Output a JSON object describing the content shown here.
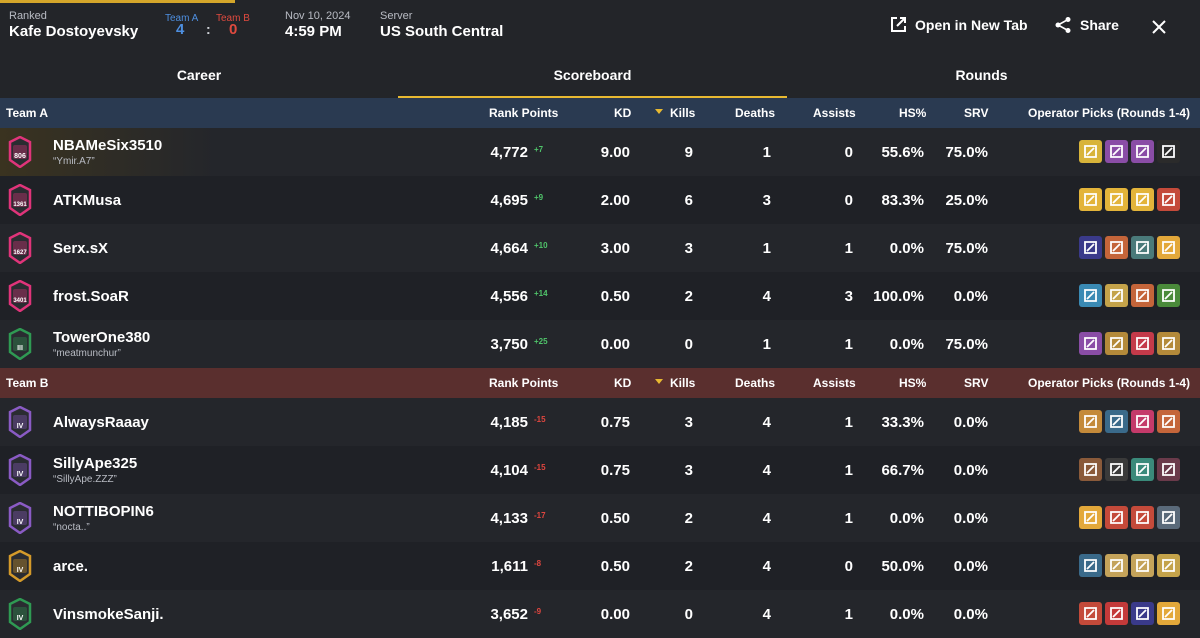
{
  "header": {
    "mode_label": "Ranked",
    "map_name": "Kafe Dostoyevsky",
    "team_a_label": "Team A",
    "team_b_label": "Team B",
    "team_a_score": "4",
    "score_separator": ":",
    "team_b_score": "0",
    "date": "Nov 10, 2024",
    "time": "4:59 PM",
    "server_label": "Server",
    "server_value": "US South Central",
    "open_new_tab_label": "Open in New Tab",
    "share_label": "Share"
  },
  "tabs": [
    {
      "label": "Career"
    },
    {
      "label": "Scoreboard",
      "active": true
    },
    {
      "label": "Rounds"
    }
  ],
  "columns": {
    "rank_points": "Rank Points",
    "kd": "KD",
    "kills": "Kills",
    "deaths": "Deaths",
    "assists": "Assists",
    "hs": "HS%",
    "srv": "SRV",
    "operators": "Operator Picks (Rounds 1-4)"
  },
  "teams": [
    {
      "name": "Team A",
      "players": [
        {
          "name": "NBAMeSix3510",
          "sub": "“Ymir.A7”",
          "rank_badge": "806",
          "rank_color": "#e0347a",
          "rank_points": "4,772",
          "delta": "+7",
          "kd": "9.00",
          "kills": "9",
          "deaths": "1",
          "assists": "0",
          "hs": "55.6%",
          "srv": "75.0%",
          "ops": [
            "#d8b43a",
            "#8a4da6",
            "#8a4da6",
            "#2b2b2b"
          ]
        },
        {
          "name": "ATKMusa",
          "sub": "",
          "rank_badge": "1361",
          "rank_color": "#e0347a",
          "rank_points": "4,695",
          "delta": "+9",
          "kd": "2.00",
          "kills": "6",
          "deaths": "3",
          "assists": "0",
          "hs": "83.3%",
          "srv": "25.0%",
          "ops": [
            "#e3b43a",
            "#e3b43a",
            "#e3b43a",
            "#c44a3a"
          ]
        },
        {
          "name": "Serx.sX",
          "sub": "",
          "rank_badge": "1627",
          "rank_color": "#e0347a",
          "rank_points": "4,664",
          "delta": "+10",
          "kd": "3.00",
          "kills": "3",
          "deaths": "1",
          "assists": "1",
          "hs": "0.0%",
          "srv": "75.0%",
          "ops": [
            "#3a3a8a",
            "#c4653a",
            "#4a7a7a",
            "#e3a83a"
          ]
        },
        {
          "name": "frost.SoaR",
          "sub": "",
          "rank_badge": "3401",
          "rank_color": "#e0347a",
          "rank_points": "4,556",
          "delta": "+14",
          "kd": "0.50",
          "kills": "2",
          "deaths": "4",
          "assists": "3",
          "hs": "100.0%",
          "srv": "0.0%",
          "ops": [
            "#3a8ab4",
            "#c4a34a",
            "#c4653a",
            "#4a8a3a"
          ]
        },
        {
          "name": "TowerOne380",
          "sub": "“meatmunchur”",
          "rank_badge": "III",
          "rank_color": "#2f9a53",
          "rank_points": "3,750",
          "delta": "+25",
          "kd": "0.00",
          "kills": "0",
          "deaths": "1",
          "assists": "1",
          "hs": "0.0%",
          "srv": "75.0%",
          "ops": [
            "#8a4da6",
            "#b48a3a",
            "#c43a4a",
            "#b48a3a"
          ]
        }
      ]
    },
    {
      "name": "Team B",
      "players": [
        {
          "name": "AlwaysRaaay",
          "sub": "",
          "rank_badge": "IV",
          "rank_color": "#8a5bc4",
          "rank_points": "4,185",
          "delta": "-15",
          "kd": "0.75",
          "kills": "3",
          "deaths": "4",
          "assists": "1",
          "hs": "33.3%",
          "srv": "0.0%",
          "ops": [
            "#c48a3a",
            "#3a6a8a",
            "#c43a6a",
            "#c4653a"
          ]
        },
        {
          "name": "SillyApe325",
          "sub": "“SillyApe.ZZZ”",
          "rank_badge": "IV",
          "rank_color": "#8a5bc4",
          "rank_points": "4,104",
          "delta": "-15",
          "kd": "0.75",
          "kills": "3",
          "deaths": "4",
          "assists": "1",
          "hs": "66.7%",
          "srv": "0.0%",
          "ops": [
            "#8a5a3a",
            "#3a3a3a",
            "#3a8a7a",
            "#6a3a4a"
          ]
        },
        {
          "name": "NOTTIBOPIN6",
          "sub": "“nocta..”",
          "rank_badge": "IV",
          "rank_color": "#8a5bc4",
          "rank_points": "4,133",
          "delta": "-17",
          "kd": "0.50",
          "kills": "2",
          "deaths": "4",
          "assists": "1",
          "hs": "0.0%",
          "srv": "0.0%",
          "ops": [
            "#e3a83a",
            "#c44a3a",
            "#c44a3a",
            "#5a6a7a"
          ]
        },
        {
          "name": "arce.",
          "sub": "",
          "rank_badge": "IV",
          "rank_color": "#d49a2a",
          "rank_points": "1,611",
          "delta": "-8",
          "kd": "0.50",
          "kills": "2",
          "deaths": "4",
          "assists": "0",
          "hs": "50.0%",
          "srv": "0.0%",
          "ops": [
            "#3a6a8a",
            "#c4a35a",
            "#c4a35a",
            "#c4a34a"
          ]
        },
        {
          "name": "VinsmokeSanji.",
          "sub": "",
          "rank_badge": "IV",
          "rank_color": "#2f9a53",
          "rank_points": "3,652",
          "delta": "-9",
          "kd": "0.00",
          "kills": "0",
          "deaths": "4",
          "assists": "1",
          "hs": "0.0%",
          "srv": "0.0%",
          "ops": [
            "#c44a3a",
            "#c43a3a",
            "#3a3a8a",
            "#e3a83a"
          ]
        }
      ]
    }
  ]
}
